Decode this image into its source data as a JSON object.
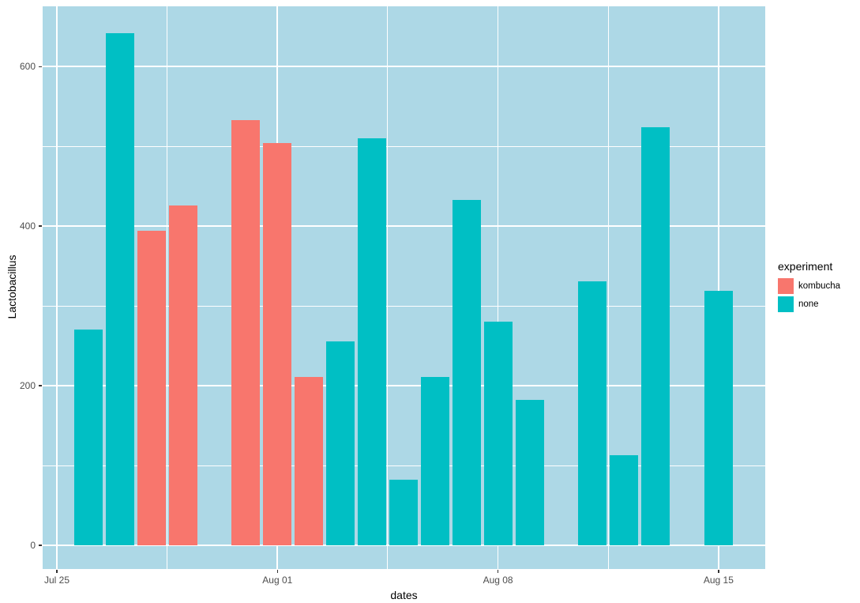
{
  "chart_data": {
    "type": "bar",
    "title": "",
    "xlabel": "dates",
    "ylabel": "Lactobacillus",
    "x_tick_labels": [
      "Jul 25",
      "Aug 01",
      "Aug 08",
      "Aug 15"
    ],
    "x_major_days": [
      0,
      7,
      14,
      21
    ],
    "x_minor_days": [
      3.5,
      10.5,
      17.5
    ],
    "y_tick_labels": [
      "0",
      "200",
      "400",
      "600"
    ],
    "y_major": [
      0,
      200,
      400,
      600
    ],
    "y_minor": [
      100,
      300,
      500
    ],
    "ylim": [
      -30,
      674
    ],
    "grid": true,
    "panel_bg": "#ADD8E6",
    "grid_color": "#FFFFFF",
    "legend": {
      "title": "experiment",
      "position": "right",
      "entries": [
        {
          "label": "kombucha",
          "color": "#F8766D"
        },
        {
          "label": "none",
          "color": "#00BFC4"
        }
      ]
    },
    "bars": [
      {
        "date": "Jul 26",
        "day": 1,
        "experiment": "none",
        "value": 270
      },
      {
        "date": "Jul 27",
        "day": 2,
        "experiment": "none",
        "value": 642
      },
      {
        "date": "Jul 28",
        "day": 3,
        "experiment": "kombucha",
        "value": 394
      },
      {
        "date": "Jul 29",
        "day": 4,
        "experiment": "kombucha",
        "value": 426
      },
      {
        "date": "Jul 31",
        "day": 6,
        "experiment": "kombucha",
        "value": 533
      },
      {
        "date": "Aug 01",
        "day": 7,
        "experiment": "kombucha",
        "value": 504
      },
      {
        "date": "Aug 02",
        "day": 8,
        "experiment": "kombucha",
        "value": 211
      },
      {
        "date": "Aug 03",
        "day": 9,
        "experiment": "none",
        "value": 256
      },
      {
        "date": "Aug 04",
        "day": 10,
        "experiment": "none",
        "value": 510
      },
      {
        "date": "Aug 05",
        "day": 11,
        "experiment": "none",
        "value": 82
      },
      {
        "date": "Aug 06",
        "day": 12,
        "experiment": "none",
        "value": 211
      },
      {
        "date": "Aug 07",
        "day": 13,
        "experiment": "none",
        "value": 433
      },
      {
        "date": "Aug 08",
        "day": 14,
        "experiment": "none",
        "value": 280
      },
      {
        "date": "Aug 09",
        "day": 15,
        "experiment": "none",
        "value": 182
      },
      {
        "date": "Aug 11",
        "day": 17,
        "experiment": "none",
        "value": 331
      },
      {
        "date": "Aug 12",
        "day": 18,
        "experiment": "none",
        "value": 113
      },
      {
        "date": "Aug 13",
        "day": 19,
        "experiment": "none",
        "value": 524
      },
      {
        "date": "Aug 15",
        "day": 21,
        "experiment": "none",
        "value": 319
      }
    ]
  }
}
